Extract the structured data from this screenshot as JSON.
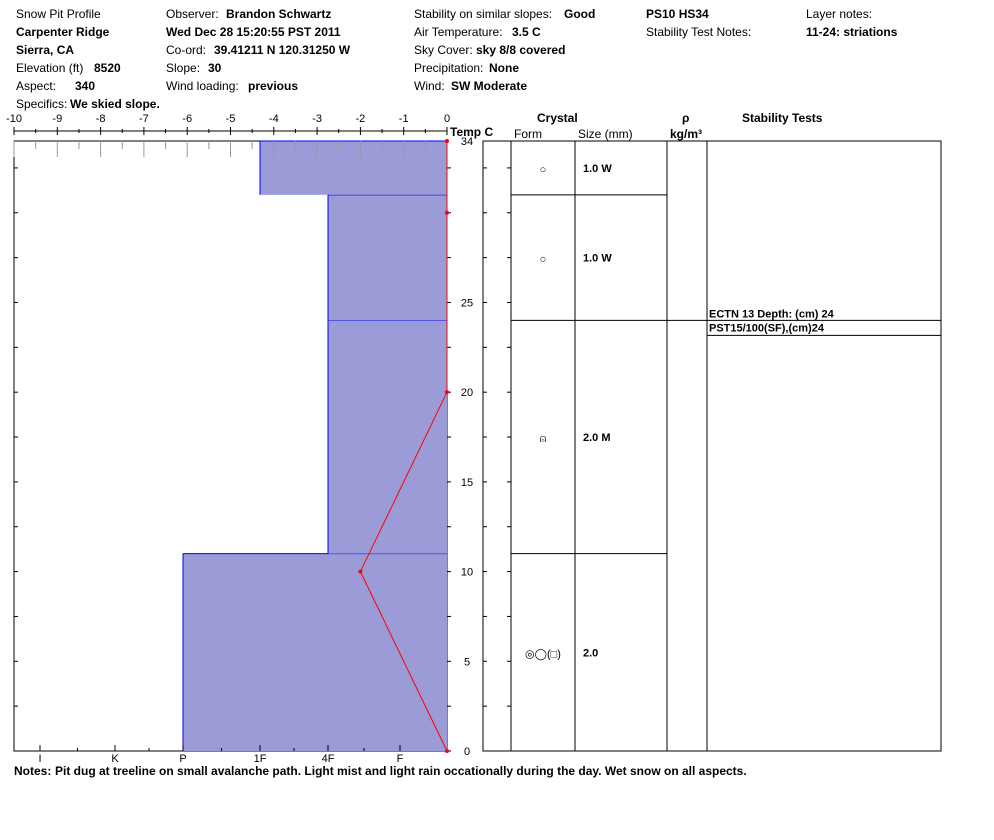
{
  "header": {
    "title": "Snow Pit Profile",
    "location": "Carpenter Ridge",
    "region": "Sierra, CA",
    "elevation_label": "Elevation (ft)",
    "elevation": "8520",
    "aspect_label": "Aspect:",
    "aspect": "340",
    "specifics_label": "Specifics:",
    "specifics": "We skied slope.",
    "observer_label": "Observer:",
    "observer": "Brandon Schwartz",
    "datetime": "Wed Dec 28 15:20:55 PST 2011",
    "coord_label": "Co-ord:",
    "coord": "39.41211 N 120.31250 W",
    "slope_label": "Slope:",
    "slope": "30",
    "wind_loading_label": "Wind loading:",
    "wind_loading": "previous",
    "stability_label": "Stability on similar slopes:",
    "stability": "Good",
    "air_temp_label": "Air Temperature:",
    "air_temp": "3.5 C",
    "sky_label": "Sky Cover:",
    "sky": "sky 8/8 covered",
    "precip_label": "Precipitation:",
    "precip": "None",
    "wind_label": "Wind:",
    "wind": "SW Moderate",
    "ps_hs": "PS10 HS34",
    "stability_notes_label": "Stability Test Notes:",
    "layer_notes_label": "Layer notes:",
    "layer_note": "11-24: striations"
  },
  "columns": {
    "crystal": "Crystal",
    "form": "Form",
    "size": "Size (mm)",
    "rho": "ρ",
    "rho_unit": "kg/m³",
    "stability_tests": "Stability Tests"
  },
  "notes_label": "Notes:",
  "notes": "Pit dug at treeline on small avalanche path. Light mist and light rain occationally during the day. Wet snow on all aspects.",
  "colors": {
    "layer_fill": "#9b9bd7",
    "layer_line": "#0000ff",
    "temp_line": "#ff0000"
  },
  "chart_data": {
    "type": "snow_profile",
    "temp_axis": {
      "label": "Temp C",
      "min": -10,
      "max": 0,
      "ticks": [
        "-10",
        "-9",
        "-8",
        "-7",
        "-6",
        "-5",
        "-4",
        "-3",
        "-2",
        "-1",
        "0"
      ]
    },
    "height_axis": {
      "min": 0,
      "max": 34,
      "unit": "cm",
      "ticks": [
        "0",
        "5",
        "10",
        "15",
        "20",
        "25",
        "34"
      ]
    },
    "hardness_axis": {
      "labels": [
        "I",
        "K",
        "P",
        "1F",
        "4F",
        "F"
      ]
    },
    "layers": [
      {
        "bottom": 0,
        "top": 11,
        "hardness": "P",
        "form": "◎◯(□)",
        "size": "2.0"
      },
      {
        "bottom": 11,
        "top": 24,
        "hardness": "4F",
        "form": "⍝",
        "size": "2.0 M"
      },
      {
        "bottom": 24,
        "top": 31,
        "hardness": "4F",
        "form": "○",
        "size": "1.0 W"
      },
      {
        "bottom": 31,
        "top": 34,
        "hardness": "1F",
        "form": "○",
        "size": "1.0 W"
      }
    ],
    "temperature": [
      {
        "height": 0,
        "temp": 0
      },
      {
        "height": 10,
        "temp": -2
      },
      {
        "height": 20,
        "temp": 0
      },
      {
        "height": 30,
        "temp": 0
      },
      {
        "height": 34,
        "temp": 0
      }
    ],
    "stability_tests": [
      {
        "height": 24,
        "lines": [
          "ECTN 13  Depth: (cm) 24",
          "PST15/100(SF),(cm)24"
        ]
      }
    ]
  }
}
